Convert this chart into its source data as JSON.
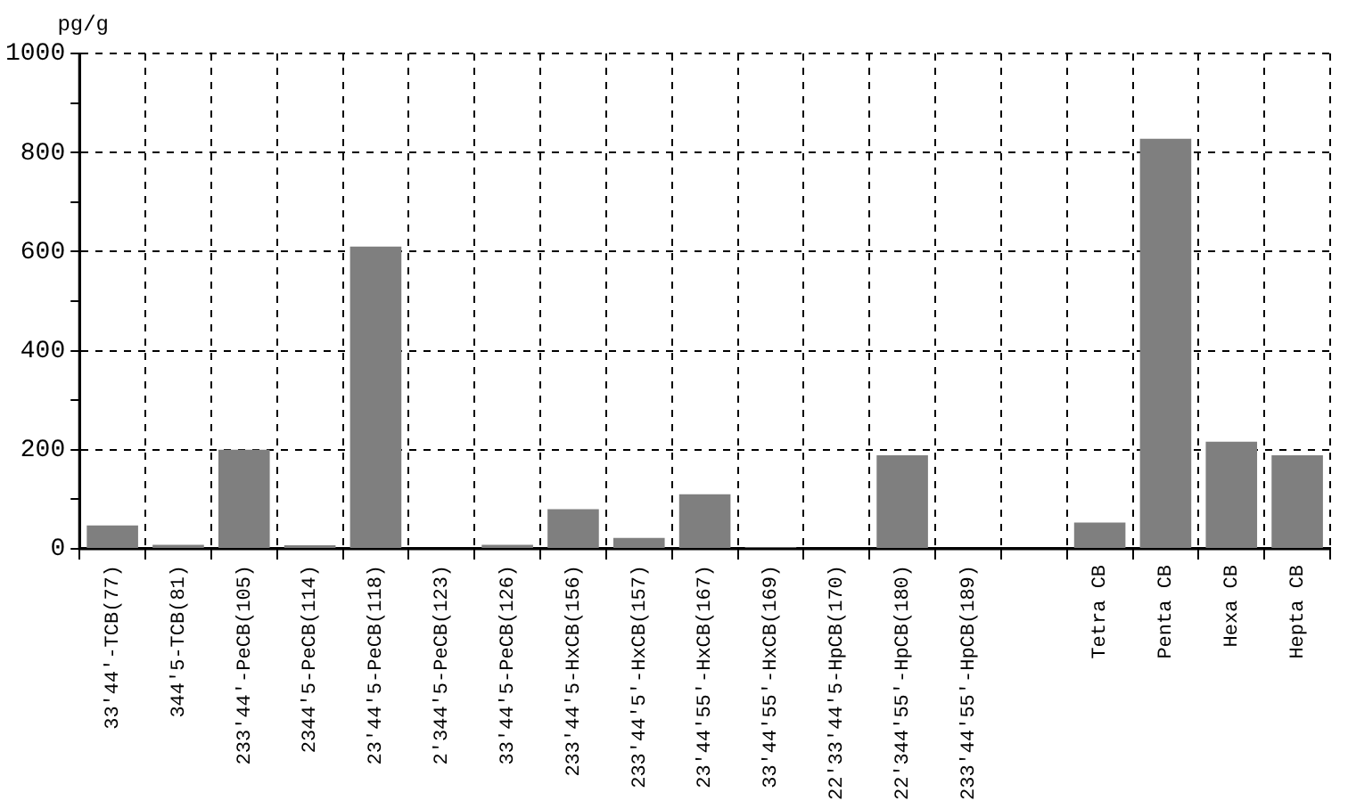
{
  "chart_data": {
    "type": "bar",
    "ylabel": "pg/g",
    "categories": [
      "33'44'-TCB(77)",
      "344'5-TCB(81)",
      "233'44'-PeCB(105)",
      "2344'5-PeCB(114)",
      "23'44'5-PeCB(118)",
      "2'344'5-PeCB(123)",
      "33'44'5-PeCB(126)",
      "233'44'5-HxCB(156)",
      "233'44'5'-HxCB(157)",
      "23'44'55'-HxCB(167)",
      "33'44'55'-HxCB(169)",
      "22'33'44'5-HpCB(170)",
      "22'344'55'-HpCB(180)",
      "233'44'55'-HpCB(189)",
      null,
      "Tetra CB",
      "Penta CB",
      "Hexa CB",
      "Hepta CB"
    ],
    "values": [
      47,
      8,
      200,
      7,
      610,
      0,
      8,
      80,
      22,
      110,
      3,
      0,
      189,
      0,
      null,
      53,
      828,
      216,
      189
    ],
    "color": "#7f7f7f",
    "ylim": [
      0,
      1000
    ],
    "yticks": [
      0,
      {
        "value": 100,
        "label": null
      },
      200,
      {
        "value": 300,
        "label": null
      },
      400,
      {
        "value": 500,
        "label": null
      },
      600,
      {
        "value": 700,
        "label": null
      },
      800,
      {
        "value": 900,
        "label": null
      },
      1000
    ],
    "grid": true
  }
}
